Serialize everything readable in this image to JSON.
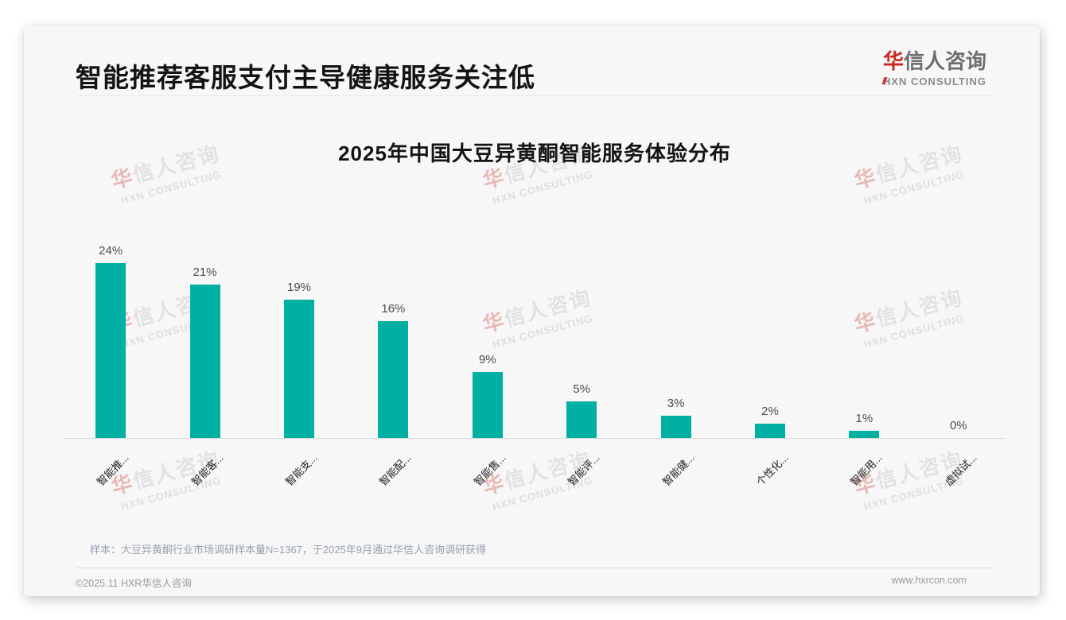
{
  "page": {
    "title": "智能推荐客服支付主导健康服务关注低",
    "logo": {
      "accent": "华",
      "name": "信人咨询",
      "sub": "HXN CONSULTING"
    },
    "watermark": {
      "accent": "华",
      "name": "信人咨询",
      "sub": "HXN CONSULTING"
    },
    "note": "样本：大豆异黄酮行业市场调研样本量N=1367，于2025年9月通过华信人咨询调研获得",
    "footer": {
      "left": "©2025.11 HXR华信人咨询",
      "right": "www.hxrcon.com"
    }
  },
  "chart_data": {
    "type": "bar",
    "title": "2025年中国大豆异黄酮智能服务体验分布",
    "categories": [
      "智能推...",
      "智能客...",
      "智能支...",
      "智能配...",
      "智能售...",
      "智能评...",
      "智能健...",
      "个性化...",
      "智能用...",
      "虚拟试..."
    ],
    "values": [
      24,
      21,
      19,
      16,
      9,
      5,
      3,
      2,
      1,
      0
    ],
    "value_labels": [
      "24%",
      "21%",
      "19%",
      "16%",
      "9%",
      "5%",
      "3%",
      "2%",
      "1%",
      "0%"
    ],
    "unit": "%",
    "ylim": [
      0,
      25
    ],
    "bar_color": "#00b1a3",
    "grid": false,
    "legend": null,
    "xlabel": "",
    "ylabel": ""
  }
}
